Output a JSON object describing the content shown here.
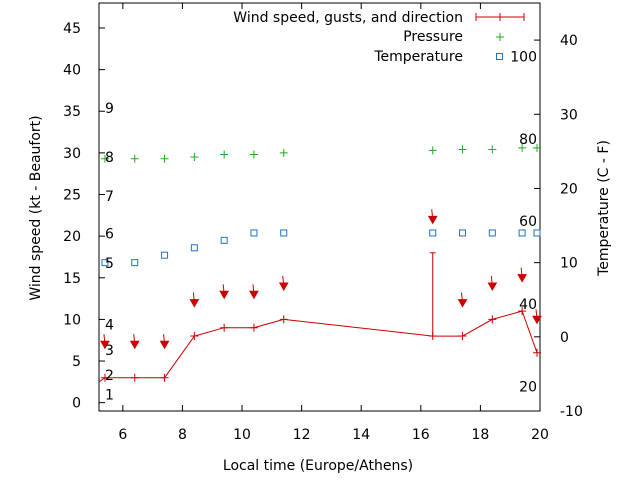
{
  "chart_data": {
    "type": "line",
    "title": "",
    "xlabel": "Local time (Europe/Athens)",
    "ylabel": "Wind speed (kt - Beaufort)",
    "y2label": "Temperature (C - F)",
    "xlim": [
      5.2,
      20
    ],
    "ylim": [
      -1,
      48
    ],
    "y2lim": [
      -10,
      45
    ],
    "xticks": [
      "6",
      "8",
      "10",
      "12",
      "14",
      "16",
      "18",
      "20"
    ],
    "yticks": [
      "0",
      "5",
      "10",
      "15",
      "20",
      "25",
      "30",
      "35",
      "40",
      "45"
    ],
    "y2ticks": [
      "-10",
      "0",
      "10",
      "20",
      "30",
      "40"
    ],
    "beaufort_labels": [
      {
        "value": 1,
        "label": "1"
      },
      {
        "value": 3.3,
        "label": "2"
      },
      {
        "value": 6.3,
        "label": "3"
      },
      {
        "value": 9.4,
        "label": "4"
      },
      {
        "value": 20.3,
        "label": "6"
      },
      {
        "value": 24.8,
        "label": "7"
      },
      {
        "value": 29.5,
        "label": "8"
      },
      {
        "value": 35.4,
        "label": "9"
      }
    ],
    "beaufort_label_5": {
      "value": 16.8,
      "label": "5"
    },
    "fahrenheit_labels": [
      {
        "value": -6.7,
        "label": "20"
      },
      {
        "value": 4.4,
        "label": "40"
      },
      {
        "value": 15.6,
        "label": "60"
      },
      {
        "value": 26.7,
        "label": "80"
      },
      {
        "value": 37.8,
        "label": "100"
      }
    ],
    "legend": {
      "placement": "top-right",
      "entries": [
        "Wind speed, gusts, and direction",
        "Pressure",
        "Temperature"
      ]
    },
    "series": [
      {
        "name": "Wind speed, gusts, and direction",
        "color": "#cc0000",
        "x": [
          5.2,
          5.4,
          6.4,
          7.4,
          8.4,
          9.4,
          10.4,
          11.4,
          16.4,
          17.4,
          18.4,
          19.4,
          19.9
        ],
        "values": [
          2.5,
          3,
          3,
          3,
          8,
          9,
          9,
          10,
          8,
          8,
          10,
          11,
          6
        ],
        "gust": {
          "x": 16.4,
          "value": 18
        }
      },
      {
        "name": "Pressure",
        "color": "#22aa22",
        "x": [
          5.4,
          6.4,
          7.4,
          8.4,
          9.4,
          10.4,
          11.4,
          16.4,
          17.4,
          18.4,
          19.4,
          19.9
        ],
        "values": [
          29.3,
          29.3,
          29.3,
          29.5,
          29.8,
          29.8,
          30,
          30.3,
          30.4,
          30.4,
          30.6,
          30.6
        ]
      },
      {
        "name": "Temperature",
        "color": "#1e73c8",
        "x": [
          5.4,
          6.4,
          7.4,
          8.4,
          9.4,
          10.4,
          11.4,
          16.4,
          17.4,
          18.4,
          19.4,
          19.9
        ],
        "values": [
          10,
          10,
          11,
          12,
          13,
          14,
          14,
          14,
          14,
          14,
          14,
          14
        ]
      }
    ],
    "wind_arrows": [
      {
        "x": 5.4,
        "y": 7.5
      },
      {
        "x": 6.4,
        "y": 7.5
      },
      {
        "x": 7.4,
        "y": 7.5
      },
      {
        "x": 8.4,
        "y": 12.5
      },
      {
        "x": 9.4,
        "y": 13.5
      },
      {
        "x": 10.4,
        "y": 13.5
      },
      {
        "x": 11.4,
        "y": 14.5
      },
      {
        "x": 16.4,
        "y": 22.5
      },
      {
        "x": 17.4,
        "y": 12.5
      },
      {
        "x": 18.4,
        "y": 14.5
      },
      {
        "x": 19.4,
        "y": 15.5
      },
      {
        "x": 19.9,
        "y": 10.5
      }
    ]
  }
}
